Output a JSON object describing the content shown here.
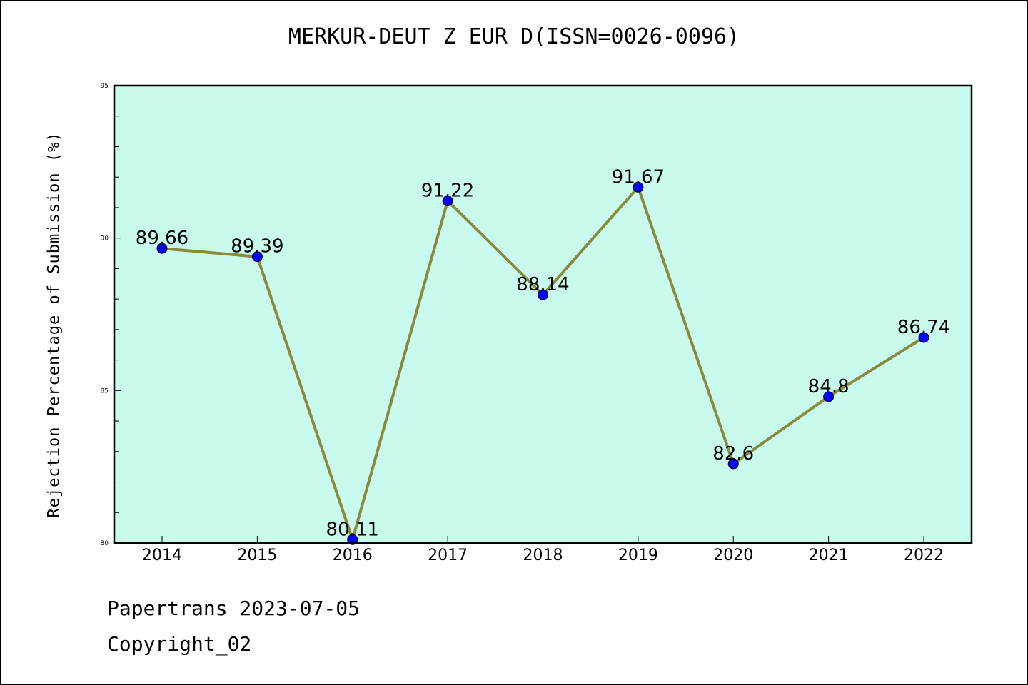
{
  "chart_data": {
    "type": "line",
    "title": "MERKUR-DEUT Z EUR D(ISSN=0026-0096)",
    "xlabel": "",
    "ylabel": "Rejection Percentage of Submission (%)",
    "categories": [
      "2014",
      "2015",
      "2016",
      "2017",
      "2018",
      "2019",
      "2020",
      "2021",
      "2022"
    ],
    "series": [
      {
        "values": [
          89.66,
          89.39,
          80.11,
          91.22,
          88.14,
          91.67,
          82.6,
          84.8,
          86.74
        ],
        "labels": [
          "89.66",
          "89.39",
          "80.11",
          "91.22",
          "88.14",
          "91.67",
          "82.6",
          "84.8",
          "86.74"
        ]
      }
    ],
    "ylim": [
      80,
      95
    ],
    "yticks": [
      "80",
      "85",
      "90",
      "95"
    ],
    "grid": false,
    "colors": {
      "background": "#c8fbee",
      "line": "#8b8a3a",
      "marker": "#0000ff"
    }
  },
  "footer": {
    "line1": "Papertrans 2023-07-05",
    "line2": "Copyright_02"
  }
}
